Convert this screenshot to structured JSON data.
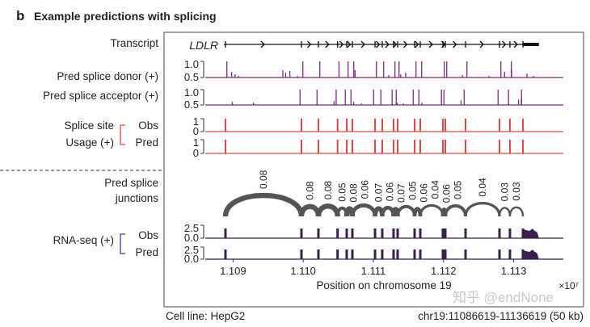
{
  "panel_letter": "b",
  "title": "Example predictions with splicing",
  "labels": {
    "transcript": "Transcript",
    "donor": "Pred splice donor (+)",
    "acceptor": "Pred splice acceptor (+)",
    "usage_1": "Splice site",
    "usage_2": "Usage (+)",
    "obs": "Obs",
    "pred": "Pred",
    "junctions_1": "Pred splice",
    "junctions_2": "junctions",
    "rnaseq": "RNA-seq (+)"
  },
  "gene_name": "LDLR",
  "colors": {
    "donor": "#7a2a7f",
    "acceptor": "#7a2a7f",
    "usage": "#e04848",
    "junction": "#555555",
    "rnaseq": "#3b1f4f",
    "bracket_usage": "#e04848",
    "bracket_rna": "#3b3b8f"
  },
  "ticks": {
    "donor": [
      "1.0",
      "0.5"
    ],
    "acceptor": [
      "1.0",
      "0.5"
    ],
    "usage_obs": [
      "1",
      "0"
    ],
    "usage_pred": [
      "1",
      "0"
    ],
    "rna_obs": [
      "2.5",
      "0.0"
    ],
    "rna_pred": [
      "2.5",
      "0.0"
    ]
  },
  "chart_data": {
    "type": "genome-tracks",
    "region": {
      "chrom": "chr19",
      "start": 11086619,
      "end": 11136619
    },
    "xlabel": "Position on chromosome 19",
    "x_multiplier": "×10⁷",
    "x_ticks": [
      "1.109",
      "1.110",
      "1.111",
      "1.112",
      "1.113"
    ],
    "x_tick_values": [
      11090000,
      11100000,
      11110000,
      11120000,
      11130000
    ],
    "exon_positions": [
      11088920,
      11099750,
      11102170,
      11104900,
      11106200,
      11107010,
      11110240,
      11111270,
      11112880,
      11113460,
      11115880,
      11116690,
      11119910,
      11120260,
      11123140,
      11127980,
      11129470,
      11131320
    ],
    "three_prime_utr": [
      11131320,
      11133600
    ],
    "junctions": [
      {
        "from": 11088920,
        "to": 11099750,
        "label": "0.08"
      },
      {
        "from": 11099750,
        "to": 11102170,
        "label": "0.08"
      },
      {
        "from": 11102170,
        "to": 11104900,
        "label": "0.08"
      },
      {
        "from": 11104900,
        "to": 11106200,
        "label": "0.05"
      },
      {
        "from": 11106200,
        "to": 11107010,
        "label": "0.08"
      },
      {
        "from": 11107010,
        "to": 11110240,
        "label": "0.06"
      },
      {
        "from": 11110240,
        "to": 11111270,
        "label": "0.07"
      },
      {
        "from": 11111270,
        "to": 11112880,
        "label": "0.06"
      },
      {
        "from": 11112880,
        "to": 11113460,
        "label": "0.07"
      },
      {
        "from": 11113460,
        "to": 11115880,
        "label": "0.05"
      },
      {
        "from": 11115880,
        "to": 11116690,
        "label": "0.06"
      },
      {
        "from": 11116690,
        "to": 11119910,
        "label": "0.04"
      },
      {
        "from": 11119910,
        "to": 11120260,
        "label": "0.06"
      },
      {
        "from": 11120260,
        "to": 11123140,
        "label": "0.05"
      },
      {
        "from": 11123140,
        "to": 11127980,
        "label": "0.04"
      },
      {
        "from": 11127980,
        "to": 11129470,
        "label": "0.03"
      },
      {
        "from": 11129470,
        "to": 11131320,
        "label": "0.03"
      }
    ],
    "donor_minor_peaks": [
      [
        11089800,
        0.35
      ],
      [
        11090300,
        0.2
      ],
      [
        11090800,
        0.1
      ],
      [
        11097100,
        0.45
      ],
      [
        11097500,
        0.3
      ],
      [
        11098100,
        0.4
      ],
      [
        11099200,
        0.1
      ],
      [
        11107400,
        0.45
      ],
      [
        11112200,
        0.15
      ],
      [
        11113900,
        0.2
      ],
      [
        11114600,
        0.3
      ],
      [
        11122700,
        0.15
      ],
      [
        11126500,
        0.1
      ],
      [
        11128700,
        0.35
      ],
      [
        11129700,
        0.5
      ],
      [
        11131900,
        0.25
      ],
      [
        11132800,
        0.1
      ]
    ],
    "acceptor_minor_peaks": [
      [
        11089900,
        0.2
      ],
      [
        11092900,
        0.15
      ],
      [
        11104400,
        0.25
      ],
      [
        11107200,
        0.2
      ],
      [
        11108300,
        0.1
      ],
      [
        11113400,
        0.15
      ],
      [
        11114300,
        0.1
      ],
      [
        11116900,
        0.15
      ],
      [
        11122500,
        0.3
      ],
      [
        11130700,
        0.35
      ],
      [
        11131100,
        0.4
      ]
    ]
  },
  "footer": {
    "cell_line": "Cell line: HepG2",
    "region_text": "chr19:11086619-11136619 (50 kb)"
  },
  "watermark": "知乎 @endNone"
}
